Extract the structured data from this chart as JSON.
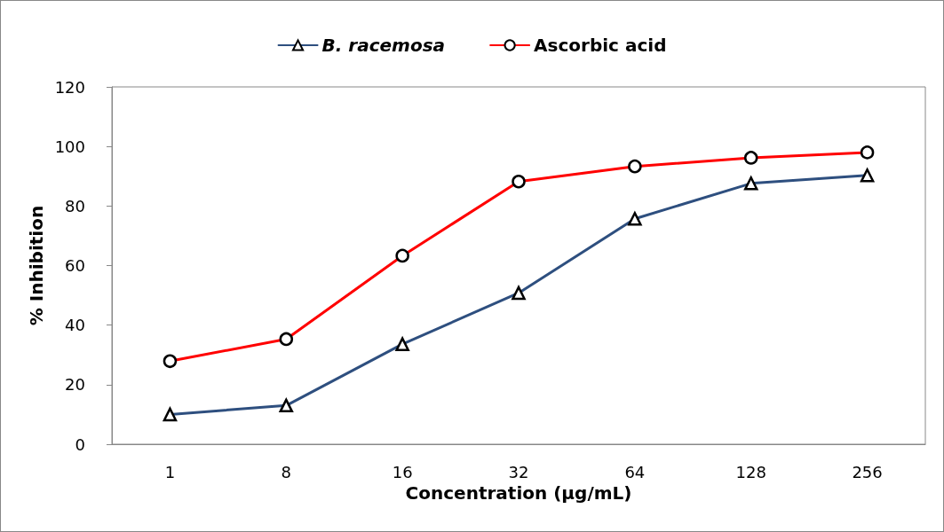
{
  "chart_data": {
    "type": "line",
    "xlabel": "Concentration (µg/mL)",
    "ylabel": "% Inhibition",
    "categories": [
      "1",
      "8",
      "16",
      "32",
      "64",
      "128",
      "256"
    ],
    "series": [
      {
        "name": "B. racemosa",
        "color": "#2e4f7f",
        "marker": "triangle",
        "values": [
          10,
          13,
          33.6,
          50.8,
          75.7,
          87.6,
          90.3
        ]
      },
      {
        "name": "Ascorbic acid",
        "color": "#ff0000",
        "marker": "circle",
        "values": [
          27.9,
          35.3,
          63.3,
          88.2,
          93.3,
          96.2,
          98
        ]
      }
    ],
    "ylim": [
      0,
      120
    ],
    "yticks": [
      0,
      20,
      40,
      60,
      80,
      100,
      120
    ],
    "grid": false,
    "legend": "top"
  }
}
